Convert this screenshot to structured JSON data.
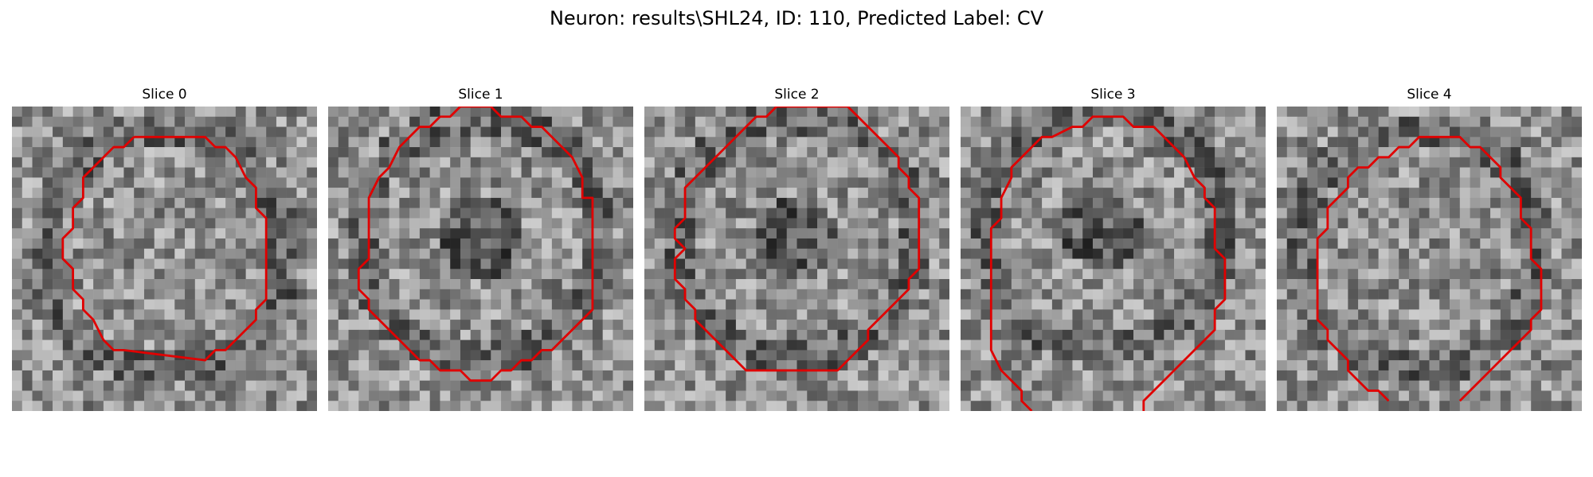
{
  "figure": {
    "suptitle": "Neuron: results\\SHL24, ID: 110, Predicted Label: CV",
    "overlay_color": "#e00000"
  },
  "panels": [
    {
      "title": "Slice 0"
    },
    {
      "title": "Slice 1"
    },
    {
      "title": "Slice 2"
    },
    {
      "title": "Slice 3"
    },
    {
      "title": "Slice 4"
    }
  ]
}
